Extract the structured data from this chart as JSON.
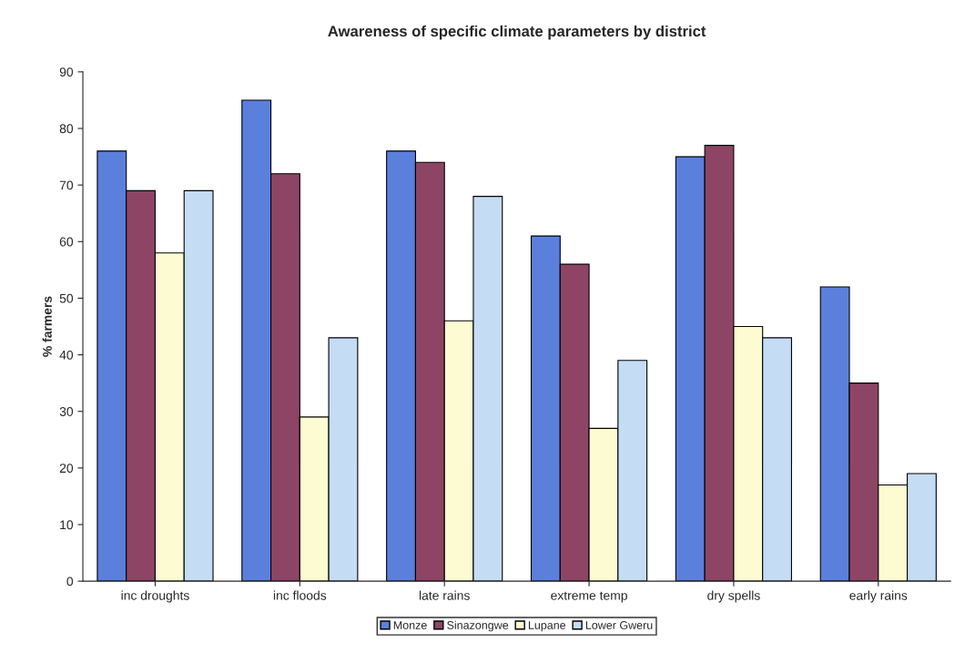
{
  "chart_data": {
    "type": "bar",
    "title": "Awareness of specific climate parameters by district",
    "ylabel": "% farmers",
    "categories": [
      "inc droughts",
      "inc floods",
      "late rains",
      "extreme temp",
      "dry spells",
      "early rains"
    ],
    "series": [
      {
        "name": "Monze",
        "color": "#5a80dc",
        "values": [
          76,
          85,
          76,
          61,
          75,
          52
        ]
      },
      {
        "name": "Sinazongwe",
        "color": "#8e4565",
        "values": [
          69,
          72,
          74,
          56,
          77,
          35
        ]
      },
      {
        "name": "Lupane",
        "color": "#fdfbd2",
        "values": [
          58,
          29,
          46,
          27,
          45,
          17
        ]
      },
      {
        "name": "Lower Gweru",
        "color": "#c4dcf4",
        "values": [
          69,
          43,
          68,
          39,
          43,
          19
        ]
      }
    ],
    "ylim": [
      0,
      90
    ],
    "yticks": [
      0,
      10,
      20,
      30,
      40,
      50,
      60,
      70,
      80,
      90
    ],
    "grid": false,
    "legend": "bottom"
  }
}
